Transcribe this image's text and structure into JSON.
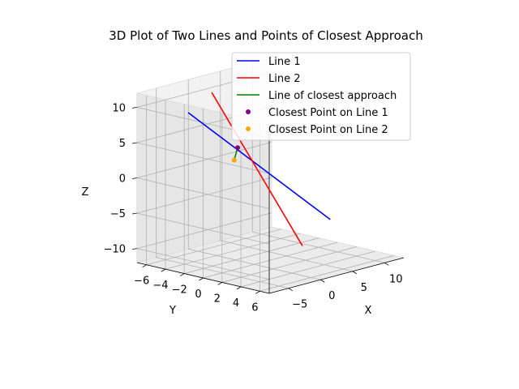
{
  "chart_data": {
    "type": "line3d",
    "title": "3D Plot of Two Lines and Points of Closest Approach",
    "xlabel": "X",
    "ylabel": "Y",
    "zlabel": "Z",
    "xlim": [
      -8,
      13
    ],
    "ylim": [
      -7,
      7
    ],
    "zlim": [
      -12,
      12
    ],
    "x_ticks": [
      -5,
      0,
      5,
      10
    ],
    "y_ticks": [
      -6,
      -4,
      -2,
      0,
      2,
      4,
      6
    ],
    "z_ticks": [
      -10,
      -5,
      0,
      5,
      10
    ],
    "grid": true,
    "legend_position": "upper right",
    "series": [
      {
        "name": "Line 1",
        "kind": "line",
        "color": "#0000ff",
        "points": [
          [
            -1.5,
            -6.0,
            8.0
          ],
          [
            3.0,
            6.0,
            -4.5
          ]
        ]
      },
      {
        "name": "Line 2",
        "kind": "line",
        "color": "#ff0000",
        "points": [
          [
            1.0,
            -5.2,
            10.5
          ],
          [
            3.8,
            2.5,
            -9.5
          ]
        ]
      },
      {
        "name": "Line of closest approach",
        "kind": "line",
        "color": "#008000",
        "points": [
          [
            1.5,
            -2.8,
            3.3
          ],
          [
            2.0,
            -3.5,
            1.2
          ]
        ]
      },
      {
        "name": "Closest Point on Line 1",
        "kind": "point",
        "color": "#800080",
        "points": [
          [
            1.5,
            -2.8,
            3.3
          ]
        ]
      },
      {
        "name": "Closest Point on Line 2",
        "kind": "point",
        "color": "#ffa500",
        "points": [
          [
            2.0,
            -3.5,
            1.2
          ]
        ]
      }
    ]
  }
}
